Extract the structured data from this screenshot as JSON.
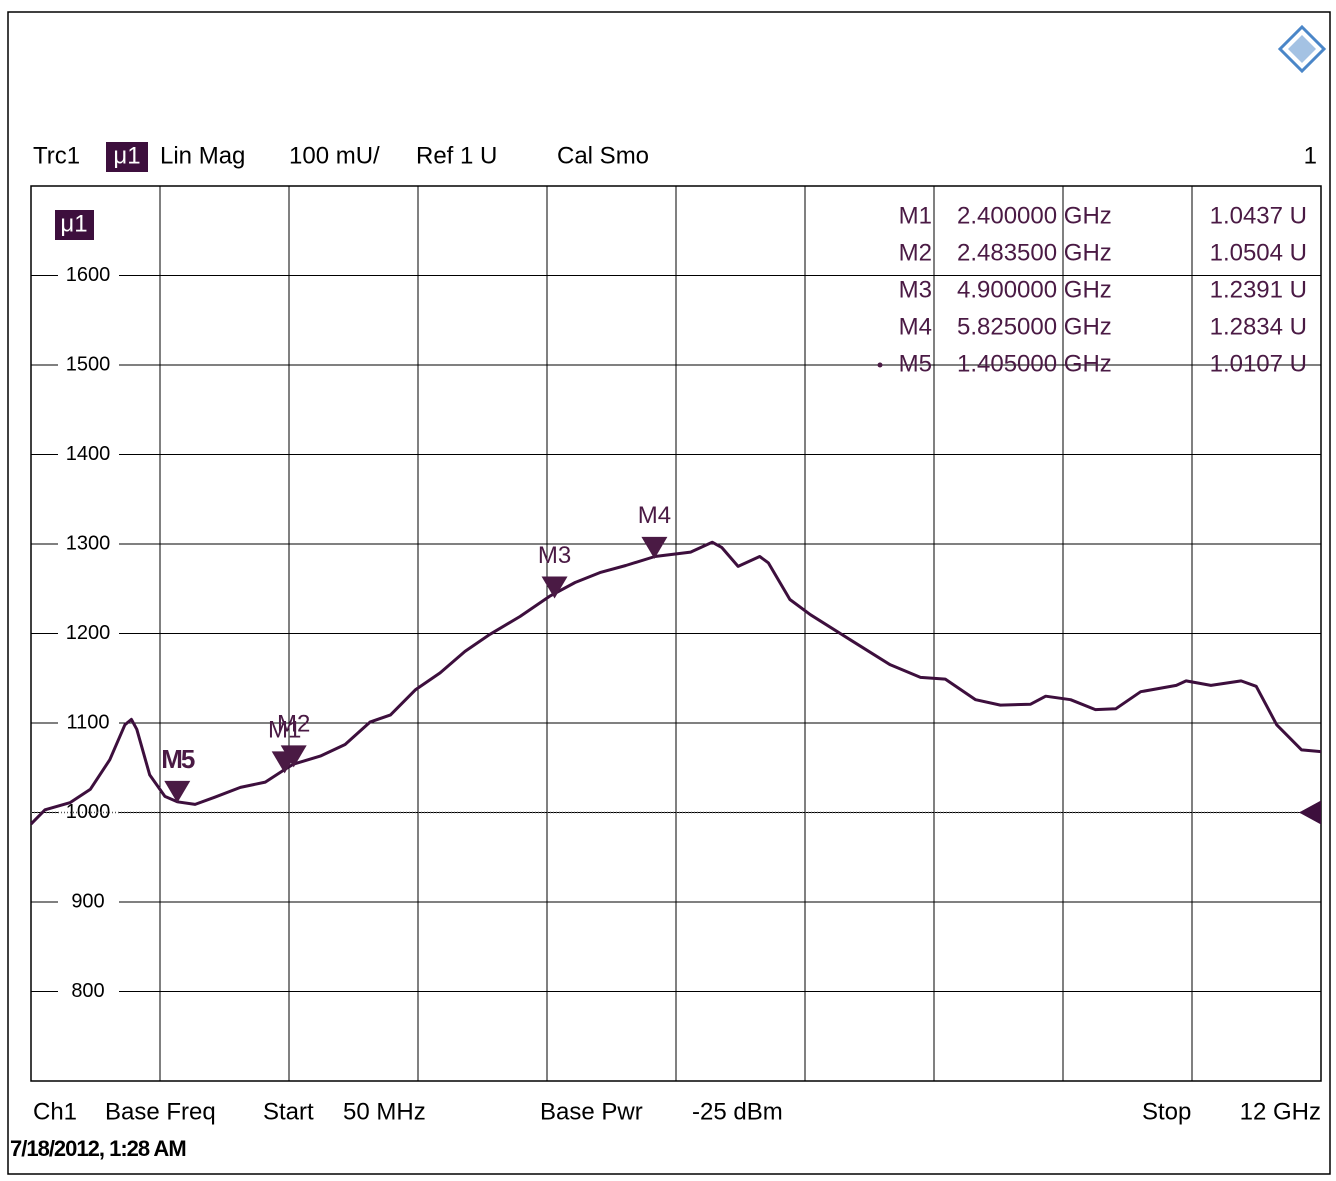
{
  "chart_data": {
    "type": "line",
    "header": {
      "trace": "Trc1",
      "memory": "μ1",
      "format": "Lin Mag",
      "scale": "100 mU/",
      "ref": "Ref 1 U",
      "flags": "Cal Smo",
      "window": "1"
    },
    "trace_label": "μ1",
    "footer": {
      "channel": "Ch1",
      "sweep": "Base Freq",
      "start_label": "Start",
      "start": "50 MHz",
      "power_label": "Base Pwr",
      "power": "-25 dBm",
      "stop_label": "Stop",
      "stop": "12 GHz"
    },
    "timestamp": "7/18/2012, 1:28 AM",
    "xlim": [
      0.05,
      12
    ],
    "x_divisions": 10,
    "ylim": [
      700,
      1700
    ],
    "yticks": [
      800,
      900,
      1000,
      1100,
      1200,
      1300,
      1400,
      1500,
      1600
    ],
    "ref_level": 1000,
    "grid": true,
    "series": [
      {
        "name": "Trc1",
        "color": "#3d0f3d",
        "x": [
          0.05,
          0.18,
          0.41,
          0.6,
          0.78,
          0.92,
          0.98,
          1.03,
          1.15,
          1.29,
          1.405,
          1.57,
          1.75,
          1.99,
          2.22,
          2.4,
          2.48,
          2.73,
          2.96,
          3.19,
          3.38,
          3.61,
          3.84,
          4.07,
          4.3,
          4.58,
          4.86,
          5.09,
          5.32,
          5.56,
          5.83,
          6.16,
          6.36,
          6.45,
          6.6,
          6.8,
          6.88,
          7.08,
          7.27,
          7.64,
          8.01,
          8.29,
          8.52,
          8.8,
          9.03,
          9.31,
          9.45,
          9.68,
          9.91,
          10.1,
          10.33,
          10.66,
          10.75,
          10.98,
          11.26,
          11.4,
          11.59,
          11.82,
          12.0
        ],
        "values": [
          987,
          1003,
          1011,
          1026,
          1059,
          1098,
          1104,
          1093,
          1042,
          1018,
          1012,
          1009,
          1017,
          1028,
          1034,
          1048,
          1054,
          1063,
          1076,
          1101,
          1109,
          1137,
          1156,
          1180,
          1199,
          1219,
          1242,
          1257,
          1268,
          1276,
          1286,
          1291,
          1302,
          1296,
          1275,
          1286,
          1279,
          1238,
          1221,
          1193,
          1165,
          1151,
          1149,
          1126,
          1120,
          1121,
          1130,
          1126,
          1115,
          1116,
          1135,
          1142,
          1147,
          1142,
          1147,
          1141,
          1098,
          1070,
          1068
        ]
      }
    ],
    "markers": {
      "names": [
        "M1",
        "M2",
        "M3",
        "M4",
        "M5"
      ],
      "x": [
        2.4,
        2.4835,
        4.9,
        5.825,
        1.405
      ],
      "x_labels": [
        "2.400000 GHz",
        "2.483500 GHz",
        "4.900000 GHz",
        "5.825000 GHz",
        "1.405000 GHz"
      ],
      "values": [
        1043.7,
        1050.4,
        1239.1,
        1283.4,
        1010.7
      ],
      "value_labels": [
        "1.0437 U",
        "1.0504 U",
        "1.2391 U",
        "1.2834 U",
        "1.0107 U"
      ],
      "color": "#4a1a44",
      "active": 4
    }
  }
}
